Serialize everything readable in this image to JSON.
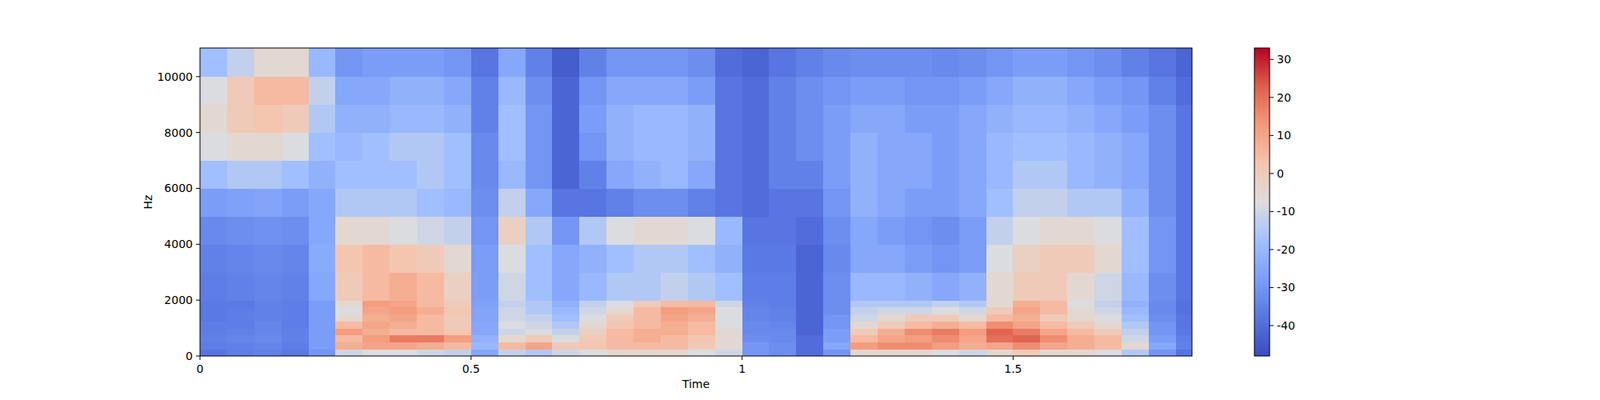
{
  "chart_data": {
    "type": "heatmap",
    "x_label": "Time",
    "y_label": "Hz",
    "xlim": [
      0,
      1.83
    ],
    "xticks": [
      0,
      0.5,
      1,
      1.5
    ],
    "ylim": [
      0,
      11025
    ],
    "yticks": [
      0,
      2000,
      4000,
      6000,
      8000,
      10000
    ],
    "x_bins": [
      0,
      0.05,
      0.1,
      0.15,
      0.2,
      0.25,
      0.3,
      0.35,
      0.4,
      0.45,
      0.5,
      0.55,
      0.6,
      0.65,
      0.7,
      0.75,
      0.8,
      0.85,
      0.9,
      0.95,
      1,
      1.05,
      1.1,
      1.15,
      1.2,
      1.25,
      1.3,
      1.35,
      1.4,
      1.45,
      1.5,
      1.55,
      1.6,
      1.65,
      1.7,
      1.75,
      1.8,
      1.85
    ],
    "y_bins": [
      0,
      250,
      500,
      750,
      1000,
      1250,
      1500,
      1750,
      2000,
      3000,
      4000,
      5000,
      6000,
      7000,
      8000,
      9000,
      10000,
      11025
    ],
    "values": [
      [
        -38,
        -36,
        -35,
        -37,
        -30,
        -10,
        -8,
        -8,
        -10,
        -12,
        -25,
        -12,
        -15,
        -10,
        -8,
        -5,
        -5,
        -5,
        -8,
        -10,
        -30,
        -32,
        -40,
        -30,
        -5,
        -5,
        -5,
        -8,
        -10,
        -5,
        0,
        -5,
        -5,
        -8,
        -15,
        -30,
        -38
      ],
      [
        -36,
        -35,
        -34,
        -36,
        -28,
        8,
        10,
        10,
        8,
        5,
        -20,
        5,
        10,
        0,
        2,
        5,
        5,
        5,
        0,
        -5,
        -30,
        -32,
        -40,
        -25,
        12,
        15,
        15,
        12,
        8,
        10,
        15,
        10,
        8,
        5,
        -5,
        -25,
        -35
      ],
      [
        -35,
        -34,
        -33,
        -35,
        -28,
        5,
        12,
        18,
        18,
        12,
        -22,
        -5,
        0,
        -8,
        0,
        5,
        8,
        5,
        2,
        -5,
        -32,
        -33,
        -40,
        -28,
        5,
        10,
        12,
        15,
        10,
        20,
        22,
        15,
        8,
        5,
        -10,
        -28,
        -36
      ],
      [
        -36,
        -35,
        -34,
        -35,
        -28,
        12,
        8,
        5,
        5,
        2,
        -25,
        -10,
        -8,
        -12,
        -2,
        5,
        8,
        8,
        5,
        -5,
        -33,
        -33,
        -42,
        -28,
        0,
        8,
        15,
        18,
        12,
        22,
        18,
        10,
        5,
        0,
        -12,
        -30,
        -37
      ],
      [
        -36,
        -36,
        -34,
        -36,
        -28,
        5,
        10,
        8,
        5,
        0,
        -25,
        -8,
        -10,
        -15,
        -5,
        2,
        5,
        8,
        5,
        -8,
        -33,
        -34,
        -42,
        -30,
        -5,
        0,
        5,
        8,
        5,
        15,
        10,
        5,
        0,
        -5,
        -15,
        -30,
        -38
      ],
      [
        -37,
        -36,
        -35,
        -36,
        -28,
        -5,
        8,
        10,
        5,
        0,
        -26,
        -10,
        -12,
        -18,
        -8,
        0,
        5,
        10,
        8,
        -8,
        -34,
        -35,
        -42,
        -30,
        -10,
        -5,
        0,
        0,
        -5,
        5,
        8,
        0,
        -5,
        -8,
        -18,
        -32,
        -38
      ],
      [
        -37,
        -36,
        -35,
        -36,
        -28,
        -8,
        10,
        12,
        8,
        2,
        -26,
        -10,
        -15,
        -20,
        -10,
        -5,
        5,
        12,
        10,
        -8,
        -34,
        -35,
        -42,
        -32,
        -12,
        -10,
        -10,
        -8,
        -10,
        0,
        10,
        5,
        -5,
        -10,
        -20,
        -33,
        -39
      ],
      [
        -37,
        -37,
        -35,
        -36,
        -28,
        -5,
        12,
        10,
        5,
        0,
        -27,
        -12,
        -15,
        -22,
        -12,
        -8,
        0,
        5,
        5,
        -10,
        -35,
        -36,
        -42,
        -32,
        -15,
        -15,
        -15,
        -12,
        -15,
        -5,
        8,
        5,
        -8,
        -12,
        -22,
        -33,
        -39
      ],
      [
        -36,
        -35,
        -34,
        -35,
        -25,
        0,
        5,
        8,
        5,
        -2,
        -28,
        -10,
        -18,
        -25,
        -20,
        -15,
        -15,
        -12,
        -15,
        -18,
        -36,
        -36,
        -42,
        -32,
        -20,
        -20,
        -22,
        -25,
        -22,
        -5,
        0,
        0,
        -5,
        -10,
        -20,
        -32,
        -38
      ],
      [
        -35,
        -34,
        -33,
        -34,
        -24,
        2,
        5,
        2,
        0,
        -5,
        -28,
        -8,
        -18,
        -25,
        -22,
        -18,
        -15,
        -15,
        -18,
        -22,
        -37,
        -37,
        -42,
        -33,
        -25,
        -25,
        -28,
        -30,
        -28,
        -8,
        -2,
        0,
        0,
        -5,
        -18,
        -30,
        -38
      ],
      [
        -33,
        -32,
        -31,
        -32,
        -25,
        -5,
        -5,
        -8,
        -10,
        -12,
        -30,
        -2,
        -15,
        -30,
        -15,
        -8,
        -5,
        -5,
        -8,
        -20,
        -38,
        -38,
        -40,
        -32,
        -25,
        -28,
        -30,
        -32,
        -28,
        -12,
        -8,
        -5,
        -5,
        -8,
        -18,
        -30,
        -38
      ],
      [
        -28,
        -27,
        -26,
        -28,
        -25,
        -15,
        -15,
        -15,
        -18,
        -20,
        -32,
        -12,
        -25,
        -38,
        -38,
        -35,
        -32,
        -32,
        -35,
        -38,
        -40,
        -38,
        -38,
        -30,
        -22,
        -25,
        -28,
        -28,
        -25,
        -18,
        -12,
        -12,
        -15,
        -15,
        -22,
        -32,
        -38
      ],
      [
        -18,
        -15,
        -15,
        -18,
        -22,
        -18,
        -18,
        -18,
        -15,
        -18,
        -33,
        -20,
        -30,
        -42,
        -35,
        -25,
        -22,
        -20,
        -25,
        -38,
        -40,
        -35,
        -35,
        -28,
        -22,
        -25,
        -25,
        -28,
        -25,
        -20,
        -15,
        -15,
        -20,
        -22,
        -25,
        -32,
        -38
      ],
      [
        -8,
        -5,
        -5,
        -8,
        -18,
        -20,
        -18,
        -15,
        -15,
        -18,
        -33,
        -18,
        -30,
        -42,
        -30,
        -22,
        -20,
        -20,
        -22,
        -38,
        -40,
        -35,
        -32,
        -28,
        -22,
        -25,
        -25,
        -28,
        -25,
        -20,
        -18,
        -18,
        -20,
        -22,
        -25,
        -32,
        -38
      ],
      [
        -5,
        0,
        2,
        0,
        -15,
        -22,
        -22,
        -20,
        -20,
        -22,
        -35,
        -18,
        -30,
        -42,
        -28,
        -22,
        -20,
        -20,
        -22,
        -38,
        -40,
        -35,
        -32,
        -28,
        -25,
        -25,
        -28,
        -28,
        -25,
        -22,
        -20,
        -20,
        -22,
        -25,
        -28,
        -32,
        -38
      ],
      [
        -8,
        0,
        5,
        5,
        -12,
        -25,
        -25,
        -22,
        -22,
        -25,
        -35,
        -20,
        -32,
        -42,
        -30,
        -25,
        -25,
        -25,
        -28,
        -38,
        -40,
        -35,
        -32,
        -30,
        -28,
        -28,
        -30,
        -30,
        -28,
        -25,
        -22,
        -22,
        -25,
        -28,
        -30,
        -35,
        -40
      ],
      [
        -18,
        -12,
        -5,
        -5,
        -20,
        -30,
        -28,
        -28,
        -28,
        -30,
        -38,
        -25,
        -35,
        -44,
        -35,
        -30,
        -30,
        -30,
        -32,
        -40,
        -42,
        -38,
        -35,
        -33,
        -32,
        -32,
        -32,
        -33,
        -32,
        -30,
        -28,
        -28,
        -30,
        -32,
        -35,
        -38,
        -42
      ]
    ],
    "colorbar": {
      "range": [
        -48,
        33
      ],
      "ticks": [
        -40,
        -30,
        -20,
        -10,
        0,
        10,
        20,
        30
      ]
    }
  }
}
